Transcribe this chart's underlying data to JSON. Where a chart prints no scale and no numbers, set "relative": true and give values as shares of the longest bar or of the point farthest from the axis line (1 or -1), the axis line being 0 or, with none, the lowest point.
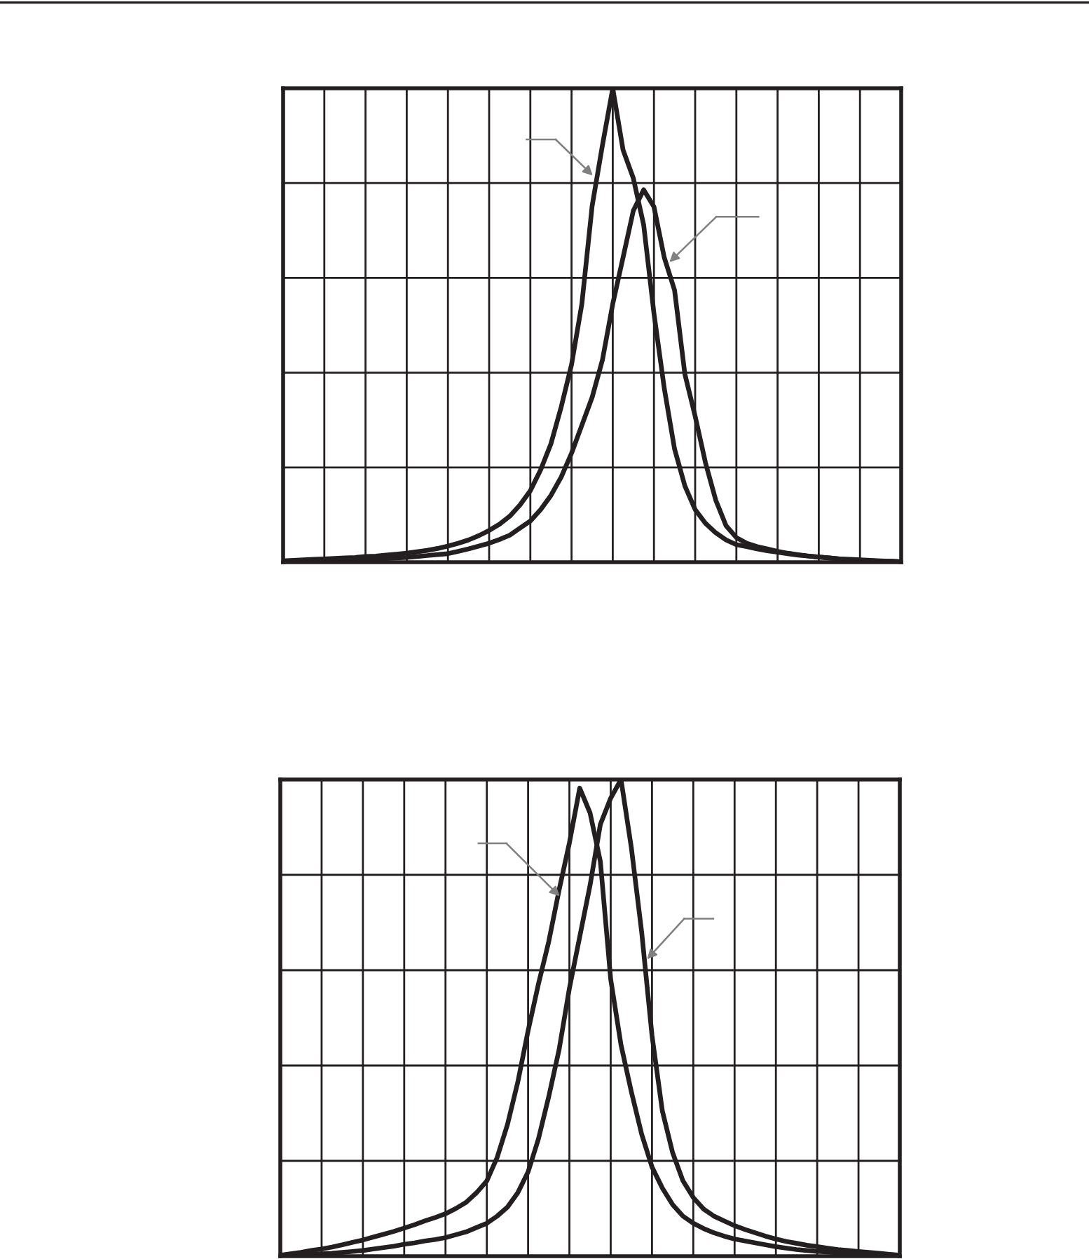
{
  "chart_data": [
    {
      "type": "line",
      "relative": true,
      "grid": true,
      "marker": "none",
      "line_style": "solid",
      "categories": [
        null,
        null,
        null,
        null,
        null,
        null,
        null,
        null,
        null,
        null,
        null,
        null,
        null,
        null,
        null,
        null,
        null,
        null,
        null,
        null,
        null,
        null,
        null,
        null,
        null,
        null,
        null,
        null,
        null,
        null,
        null,
        null,
        null,
        null,
        null,
        null,
        null,
        null,
        null,
        null,
        null,
        null,
        null,
        null,
        null,
        null,
        null,
        null,
        null,
        null,
        null,
        null,
        null,
        null,
        null,
        null,
        null,
        null,
        null,
        null,
        null
      ],
      "series": [
        {
          "color": "#231f20",
          "values": [
            0.003,
            0.004,
            0.005,
            0.006,
            0.007,
            0.008,
            0.009,
            0.01,
            0.012,
            0.013,
            0.015,
            0.017,
            0.019,
            0.022,
            0.025,
            0.029,
            0.034,
            0.04,
            0.047,
            0.056,
            0.067,
            0.08,
            0.097,
            0.121,
            0.151,
            0.195,
            0.25,
            0.328,
            0.417,
            0.545,
            0.752,
            0.88,
            1.0,
            0.87,
            0.81,
            0.712,
            0.525,
            0.367,
            0.239,
            0.161,
            0.111,
            0.082,
            0.062,
            0.047,
            0.037,
            0.033,
            0.028,
            0.024,
            0.021,
            0.018,
            0.015,
            0.013,
            0.011,
            0.009,
            0.007,
            0.006,
            0.005,
            0.004,
            0.003,
            0.002,
            0.001
          ]
        },
        {
          "color": "#231f20",
          "values": [
            0.001,
            0.002,
            0.002,
            0.003,
            0.003,
            0.004,
            0.004,
            0.005,
            0.006,
            0.007,
            0.008,
            0.009,
            0.01,
            0.012,
            0.014,
            0.016,
            0.018,
            0.023,
            0.028,
            0.034,
            0.04,
            0.048,
            0.057,
            0.072,
            0.087,
            0.111,
            0.141,
            0.18,
            0.23,
            0.289,
            0.348,
            0.427,
            0.545,
            0.643,
            0.742,
            0.786,
            0.75,
            0.643,
            0.574,
            0.397,
            0.308,
            0.21,
            0.131,
            0.077,
            0.052,
            0.04,
            0.033,
            0.028,
            0.023,
            0.019,
            0.016,
            0.013,
            0.011,
            0.009,
            0.007,
            0.005,
            0.004,
            0.003,
            0.002,
            0.002,
            0.001
          ]
        }
      ]
    },
    {
      "type": "line",
      "relative": true,
      "grid": true,
      "marker": "none",
      "line_style": "solid",
      "categories": [
        null,
        null,
        null,
        null,
        null,
        null,
        null,
        null,
        null,
        null,
        null,
        null,
        null,
        null,
        null,
        null,
        null,
        null,
        null,
        null,
        null,
        null,
        null,
        null,
        null,
        null,
        null,
        null,
        null,
        null,
        null,
        null,
        null,
        null,
        null,
        null,
        null,
        null,
        null,
        null,
        null,
        null,
        null,
        null,
        null,
        null,
        null,
        null,
        null,
        null,
        null,
        null,
        null,
        null,
        null,
        null,
        null,
        null,
        null,
        null,
        null
      ],
      "series": [
        {
          "color": "#231f20",
          "values": [
            0.002,
            0.005,
            0.008,
            0.012,
            0.015,
            0.019,
            0.024,
            0.029,
            0.034,
            0.04,
            0.046,
            0.052,
            0.059,
            0.066,
            0.074,
            0.081,
            0.089,
            0.1,
            0.113,
            0.133,
            0.158,
            0.207,
            0.276,
            0.365,
            0.473,
            0.571,
            0.66,
            0.768,
            0.867,
            0.982,
            0.93,
            0.828,
            0.581,
            0.443,
            0.345,
            0.256,
            0.187,
            0.143,
            0.108,
            0.084,
            0.069,
            0.058,
            0.049,
            0.042,
            0.036,
            0.032,
            0.028,
            0.024,
            0.02,
            0.017,
            0.014,
            0.012,
            0.01,
            0.009,
            0.007,
            0.006,
            0.005,
            0.004,
            0.003,
            0.003,
            0.002
          ]
        },
        {
          "color": "#231f20",
          "values": [
            0.001,
            0.002,
            0.003,
            0.004,
            0.005,
            0.006,
            0.008,
            0.01,
            0.012,
            0.015,
            0.018,
            0.021,
            0.025,
            0.028,
            0.032,
            0.035,
            0.039,
            0.045,
            0.051,
            0.06,
            0.069,
            0.084,
            0.103,
            0.133,
            0.177,
            0.246,
            0.335,
            0.433,
            0.562,
            0.67,
            0.778,
            0.906,
            0.961,
            1.0,
            0.857,
            0.68,
            0.463,
            0.305,
            0.217,
            0.158,
            0.123,
            0.099,
            0.084,
            0.074,
            0.064,
            0.056,
            0.049,
            0.042,
            0.036,
            0.031,
            0.027,
            0.023,
            0.02,
            0.017,
            0.014,
            0.012,
            0.01,
            0.008,
            0.006,
            0.004,
            0.002
          ]
        }
      ]
    }
  ]
}
